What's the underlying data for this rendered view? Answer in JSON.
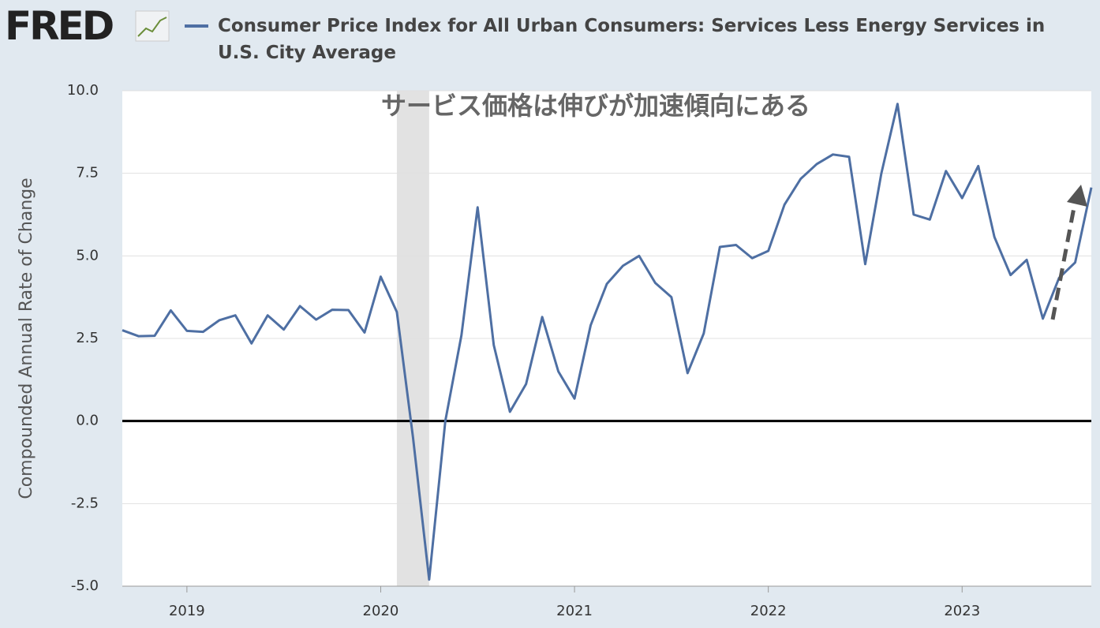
{
  "logo": "FRED",
  "chart_data": {
    "type": "line",
    "title": "Consumer Price Index for All Urban Consumers: Services Less Energy Services in U.S. City Average",
    "y_axis_label": "Compounded Annual Rate of Change",
    "annotation": "サービス価格は伸びが加速傾向にある",
    "x": [
      "2018-09",
      "2018-10",
      "2018-11",
      "2018-12",
      "2019-01",
      "2019-02",
      "2019-03",
      "2019-04",
      "2019-05",
      "2019-06",
      "2019-07",
      "2019-08",
      "2019-09",
      "2019-10",
      "2019-11",
      "2019-12",
      "2020-01",
      "2020-02",
      "2020-03",
      "2020-04",
      "2020-05",
      "2020-06",
      "2020-07",
      "2020-08",
      "2020-09",
      "2020-10",
      "2020-11",
      "2020-12",
      "2021-01",
      "2021-02",
      "2021-03",
      "2021-04",
      "2021-05",
      "2021-06",
      "2021-07",
      "2021-08",
      "2021-09",
      "2021-10",
      "2021-11",
      "2021-12",
      "2022-01",
      "2022-02",
      "2022-03",
      "2022-04",
      "2022-05",
      "2022-06",
      "2022-07",
      "2022-08",
      "2022-09",
      "2022-10",
      "2022-11",
      "2022-12",
      "2023-01",
      "2023-02",
      "2023-03",
      "2023-04",
      "2023-05",
      "2023-06",
      "2023-07",
      "2023-08",
      "2023-09"
    ],
    "series": [
      {
        "name": "Consumer Price Index for All Urban Consumers: Services Less Energy Services in U.S. City Average",
        "color": "#4e6fa3",
        "values": [
          2.75,
          2.57,
          2.58,
          3.35,
          2.73,
          2.7,
          3.05,
          3.2,
          2.35,
          3.2,
          2.77,
          3.48,
          3.07,
          3.37,
          3.36,
          2.68,
          4.37,
          3.3,
          -0.5,
          -4.8,
          0.0,
          2.6,
          6.47,
          2.3,
          0.28,
          1.12,
          3.15,
          1.5,
          0.68,
          2.9,
          4.15,
          4.7,
          5.0,
          4.18,
          3.75,
          1.45,
          2.65,
          5.27,
          5.33,
          4.93,
          5.15,
          6.55,
          7.33,
          7.78,
          8.07,
          8.0,
          4.75,
          7.5,
          9.6,
          6.25,
          6.1,
          7.57,
          6.75,
          7.72,
          5.57,
          4.42,
          4.88,
          3.1,
          4.33,
          4.8,
          7.07
        ]
      }
    ],
    "recessions": [
      {
        "start": "2020-02",
        "end": "2020-04"
      }
    ],
    "xlim": [
      "2018-09",
      "2023-09"
    ],
    "xticks": [
      {
        "value": "2019-01",
        "label": "2019"
      },
      {
        "value": "2020-01",
        "label": "2020"
      },
      {
        "value": "2021-01",
        "label": "2021"
      },
      {
        "value": "2022-01",
        "label": "2022"
      },
      {
        "value": "2023-01",
        "label": "2023"
      }
    ],
    "ylim": [
      -5,
      10
    ],
    "yticks": [
      {
        "value": -5,
        "label": "-5.0"
      },
      -2.5,
      {
        "value": 0,
        "label": "0.0"
      },
      2.5,
      {
        "value": 5,
        "label": "5.0"
      },
      7.5,
      {
        "value": 10,
        "label": "10.0"
      }
    ],
    "grid": true
  }
}
